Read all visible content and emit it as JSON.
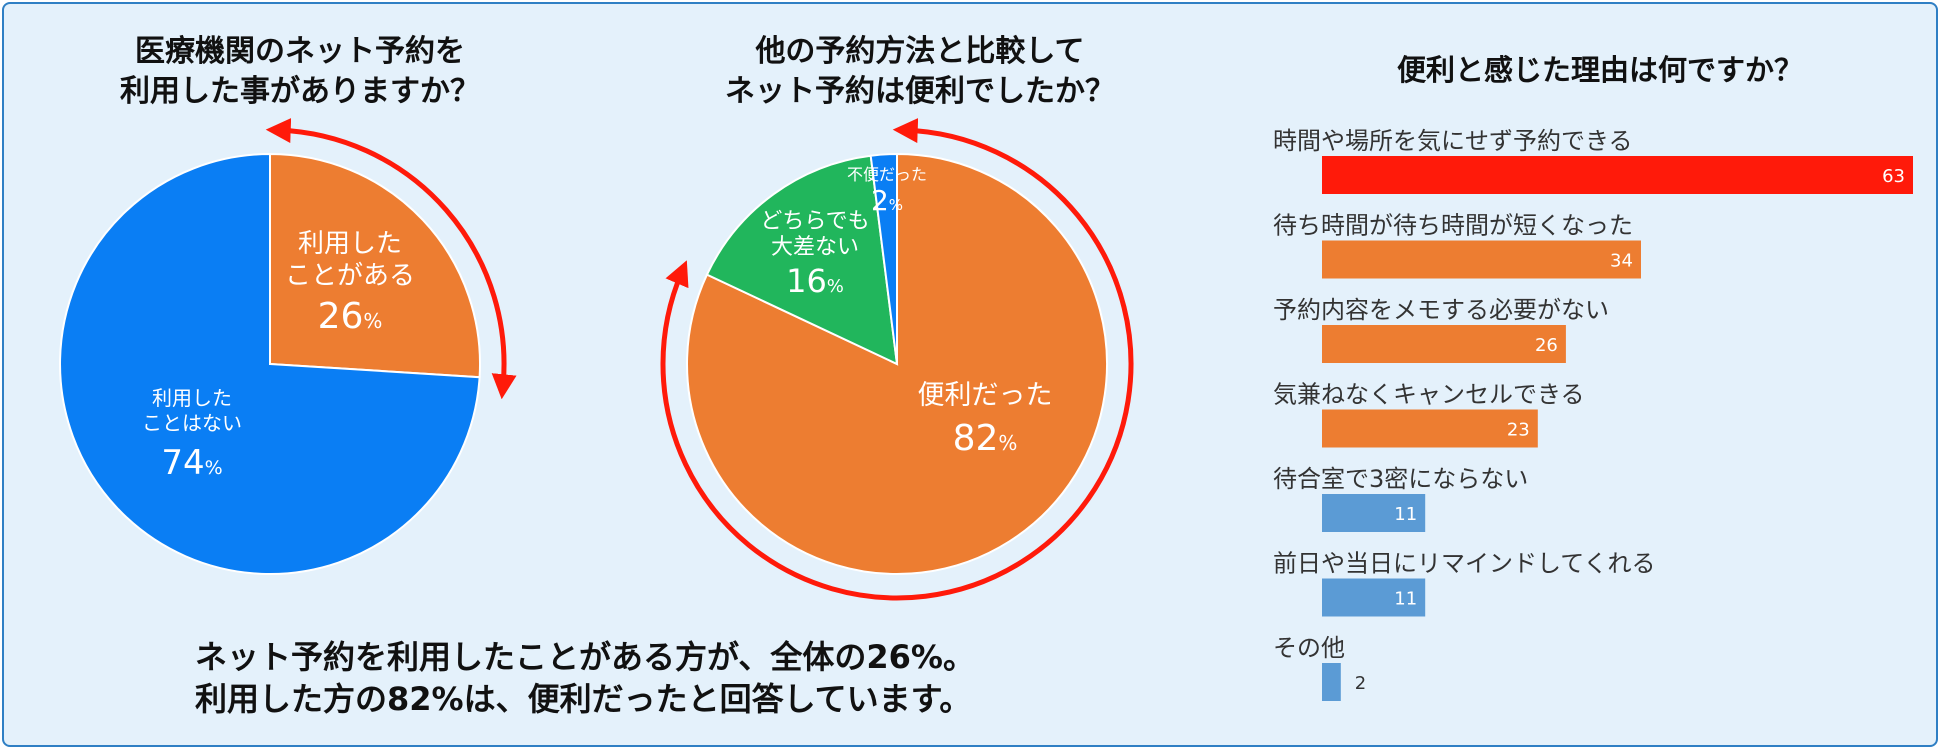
{
  "chart_data": [
    {
      "type": "pie",
      "title_lines": [
        "医療機関のネット予約を",
        "利用した事がありますか？"
      ],
      "slices": [
        {
          "label_lines": [
            "利用した",
            "ことがある"
          ],
          "pct": "26",
          "value": 26,
          "color": "#ed7d31"
        },
        {
          "label_lines": [
            "利用した",
            "ことはない"
          ],
          "pct": "74",
          "value": 74,
          "color": "#0a7ef4"
        }
      ],
      "unit": "%"
    },
    {
      "type": "pie",
      "title_lines": [
        "他の予約方法と比較して",
        "ネット予約は便利でしたか？"
      ],
      "slices": [
        {
          "label_lines": [
            "便利だった"
          ],
          "pct": "82",
          "value": 82,
          "color": "#ed7d31"
        },
        {
          "label_lines": [
            "どちらでも",
            "大差ない"
          ],
          "pct": "16",
          "value": 16,
          "color": "#21b65c"
        },
        {
          "label_lines": [
            "不便だった"
          ],
          "pct": "2",
          "value": 2,
          "color": "#0a7ef4"
        }
      ],
      "unit": "%"
    },
    {
      "type": "bar",
      "orientation": "horizontal",
      "title": "便利と感じた理由は何ですか？",
      "categories": [
        "時間や場所を気にせず予約できる",
        "待ち時間が待ち時間が短くなった",
        "予約内容をメモする必要がない",
        "気兼ねなくキャンセルできる",
        "待合室で3密にならない",
        "前日や当日にリマインドしてくれる",
        "その他"
      ],
      "values": [
        63,
        34,
        26,
        23,
        11,
        11,
        2
      ],
      "colors": [
        "#ff1a0a",
        "#ed7d31",
        "#ed7d31",
        "#ed7d31",
        "#5b9bd5",
        "#5b9bd5",
        "#5b9bd5"
      ],
      "xlim": [
        0,
        63
      ]
    }
  ],
  "summary": {
    "line1": "ネット予約を利用したことがある方が、全体の26%。",
    "line2": "利用した方の82%は、便利だったと回答しています。"
  },
  "colors": {
    "background": "#e4f1fb",
    "border": "#2f7fc4",
    "arrow": "#ff1a0a"
  }
}
